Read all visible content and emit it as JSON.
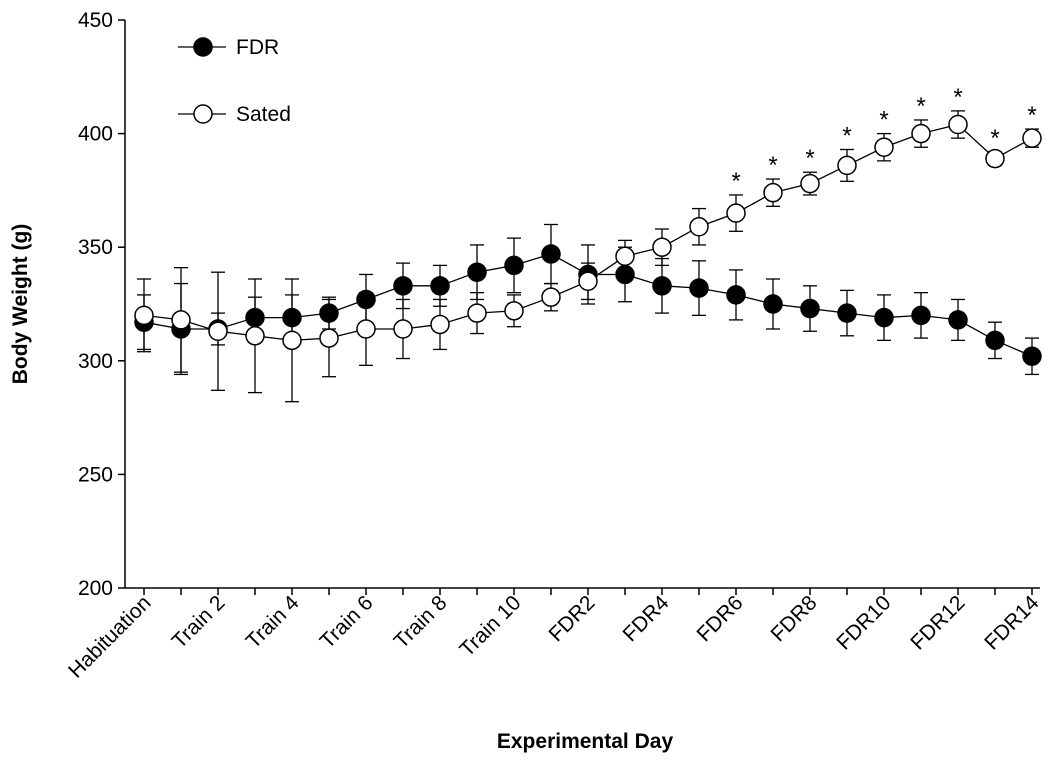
{
  "chart_data": {
    "type": "line",
    "xlabel": "Experimental Day",
    "ylabel": "Body Weight (g)",
    "categories": [
      "Habituation",
      null,
      "Train 2",
      null,
      "Train 4",
      null,
      "Train 6",
      null,
      "Train 8",
      null,
      "Train 10",
      null,
      "FDR2",
      null,
      "FDR4",
      null,
      "FDR6",
      null,
      "FDR8",
      null,
      "FDR10",
      null,
      "FDR12",
      null,
      "FDR14"
    ],
    "ylim": [
      200,
      450
    ],
    "yticks": [
      200,
      250,
      300,
      350,
      400,
      450
    ],
    "series": [
      {
        "name": "FDR",
        "color": "#000000",
        "marker_fill": "#000000",
        "values": [
          317,
          314,
          314,
          319,
          319,
          321,
          327,
          333,
          333,
          339,
          342,
          347,
          338,
          338,
          333,
          332,
          329,
          325,
          323,
          321,
          319,
          320,
          318,
          309,
          302
        ],
        "errors": [
          12,
          20,
          7,
          9,
          10,
          7,
          11,
          10,
          9,
          12,
          12,
          13,
          13,
          12,
          12,
          12,
          11,
          11,
          10,
          10,
          10,
          10,
          9,
          8,
          8
        ]
      },
      {
        "name": "Sated",
        "color": "#000000",
        "marker_fill": "#ffffff",
        "values": [
          320,
          318,
          313,
          311,
          309,
          310,
          314,
          314,
          316,
          321,
          322,
          328,
          335,
          346,
          350,
          359,
          365,
          374,
          378,
          386,
          394,
          400,
          404,
          389,
          398
        ],
        "errors": [
          16,
          23,
          26,
          25,
          27,
          17,
          16,
          13,
          11,
          9,
          7,
          6,
          8,
          7,
          8,
          8,
          8,
          6,
          5,
          7,
          6,
          6,
          6,
          3,
          4
        ],
        "markers": [
          null,
          null,
          null,
          null,
          null,
          null,
          null,
          null,
          null,
          null,
          null,
          null,
          null,
          null,
          null,
          null,
          "*",
          "*",
          "*",
          "*",
          "*",
          "*",
          "*",
          "*",
          "*"
        ]
      }
    ]
  }
}
